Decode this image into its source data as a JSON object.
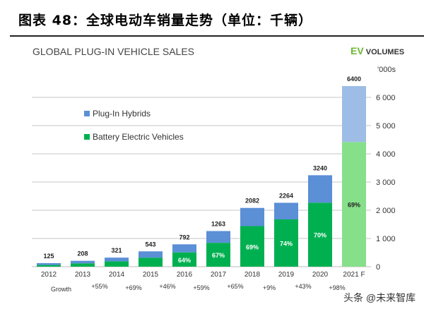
{
  "figure_title": "图表 48：全球电动车销量走势（单位：千辆）",
  "logo": {
    "ev": "EV",
    "volumes": "VOLUMES"
  },
  "watermark": "头条 @未来智库",
  "colors": {
    "phev": "#5b8fd6",
    "bev": "#00b050",
    "phev_forecast": "#9dbde6",
    "bev_forecast": "#86e08a"
  },
  "chart_data": {
    "type": "bar",
    "stacked": true,
    "title": "GLOBAL PLUG-IN VEHICLE SALES",
    "y_unit_label": "'000s",
    "y_axis_position": "right",
    "ylim": [
      0,
      6400
    ],
    "yticks": [
      0,
      1000,
      2000,
      3000,
      4000,
      5000,
      6000
    ],
    "ytick_labels": [
      "0",
      "1 000",
      "2 000",
      "3 000",
      "4 000",
      "5 000",
      "6 000"
    ],
    "grid": true,
    "legend_placement": "left",
    "categories": [
      "2012",
      "2013",
      "2014",
      "2015",
      "2016",
      "2017",
      "2018",
      "2019",
      "2020",
      "2021 F"
    ],
    "totals": [
      125,
      208,
      321,
      543,
      792,
      1263,
      2082,
      2264,
      3240,
      6400
    ],
    "series": [
      {
        "name": "Battery Electric Vehicles",
        "values": [
          60,
          118,
          190,
          320,
          507,
          846,
          1437,
          1675,
          2268,
          4416
        ]
      },
      {
        "name": "Plug-In Hybrids",
        "values": [
          65,
          90,
          131,
          223,
          285,
          417,
          645,
          589,
          972,
          1984
        ]
      }
    ],
    "bev_share_labels": [
      "",
      "",
      "",
      "",
      "64%",
      "67%",
      "69%",
      "74%",
      "70%",
      "69%"
    ],
    "growth_label": "Growth",
    "growth": [
      "+55%",
      "+69%",
      "+46%",
      "+59%",
      "+65%",
      "+9%",
      "+43%",
      "+98%"
    ]
  }
}
